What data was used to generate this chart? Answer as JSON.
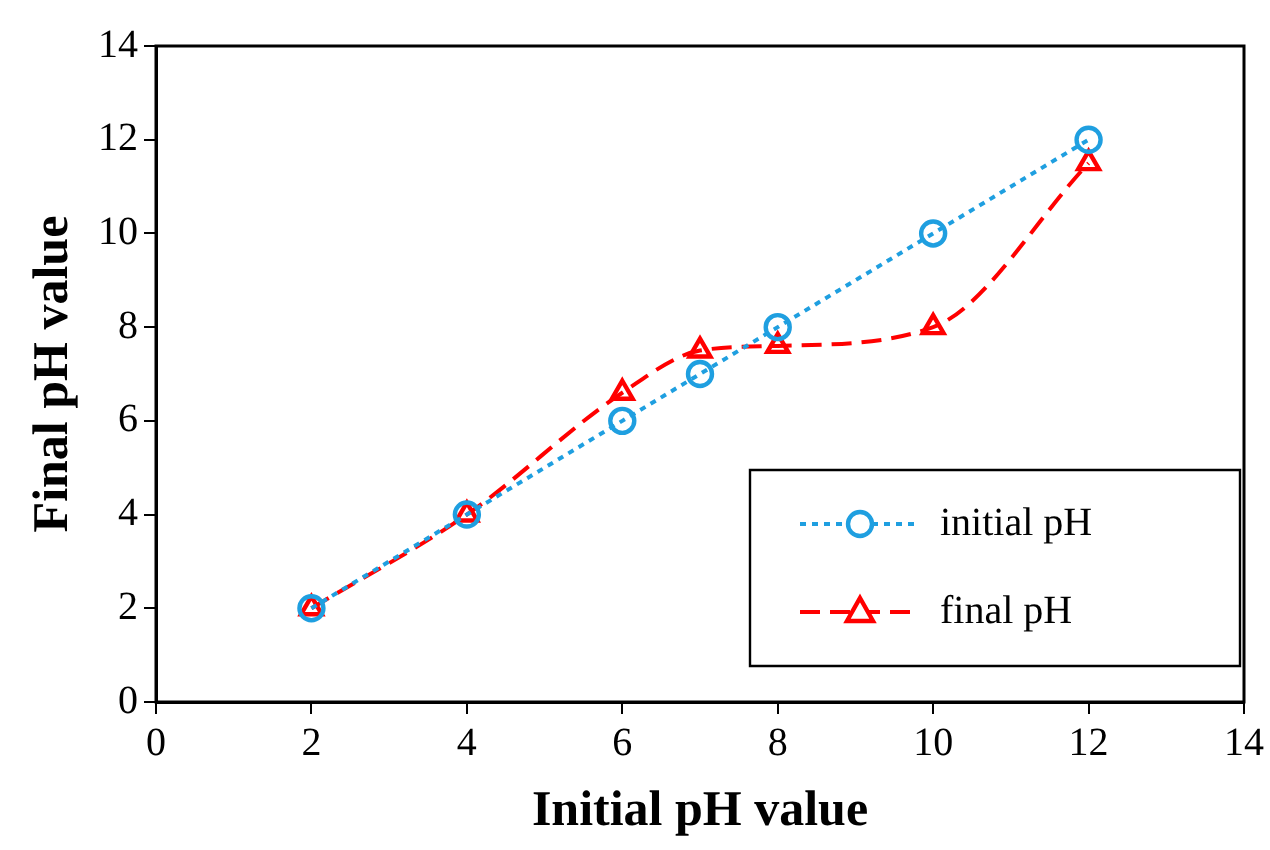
{
  "chart_data": {
    "type": "line",
    "xlabel": "Initial pH value",
    "ylabel": "Final pH value",
    "x": [
      2,
      4,
      6,
      7,
      8,
      10,
      12
    ],
    "series": [
      {
        "name": "initial pH",
        "color": "#1f9fe0",
        "values": [
          2,
          4,
          6,
          7,
          8,
          10,
          12
        ],
        "marker": "circle",
        "line_style": "dotted"
      },
      {
        "name": "final pH",
        "color": "#ff0000",
        "values": [
          2,
          4,
          6.6,
          7.5,
          7.6,
          8,
          11.5
        ],
        "marker": "triangle",
        "line_style": "dashed"
      }
    ],
    "xlim": [
      0,
      14
    ],
    "xticks": [
      0,
      2,
      4,
      6,
      8,
      10,
      12,
      14
    ],
    "ylim": [
      0,
      14
    ],
    "yticks": [
      0,
      2,
      4,
      6,
      8,
      10,
      12,
      14
    ],
    "grid": false,
    "legend": "bottom right"
  }
}
